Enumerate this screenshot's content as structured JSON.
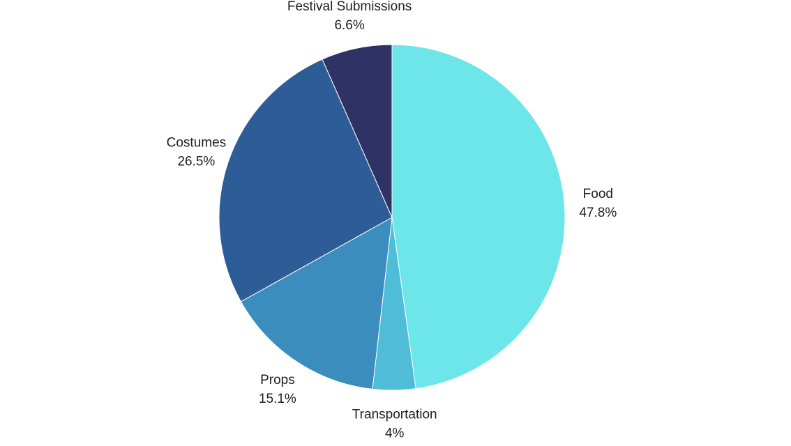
{
  "chart_data": {
    "type": "pie",
    "title": "",
    "slices": [
      {
        "label": "Food",
        "value": 47.8,
        "value_label": "47.8%",
        "color": "#6de6ea"
      },
      {
        "label": "Transportation",
        "value": 4,
        "value_label": "4%",
        "color": "#4fbcd8"
      },
      {
        "label": "Props",
        "value": 15.1,
        "value_label": "15.1%",
        "color": "#3a8dbc"
      },
      {
        "label": "Costumes",
        "value": 26.5,
        "value_label": "26.5%",
        "color": "#2e5c96"
      },
      {
        "label": "Festival Submissions",
        "value": 6.6,
        "value_label": "6.6%",
        "color": "#2f3265"
      }
    ],
    "start": "top",
    "direction": "clockwise",
    "legend": "none"
  }
}
